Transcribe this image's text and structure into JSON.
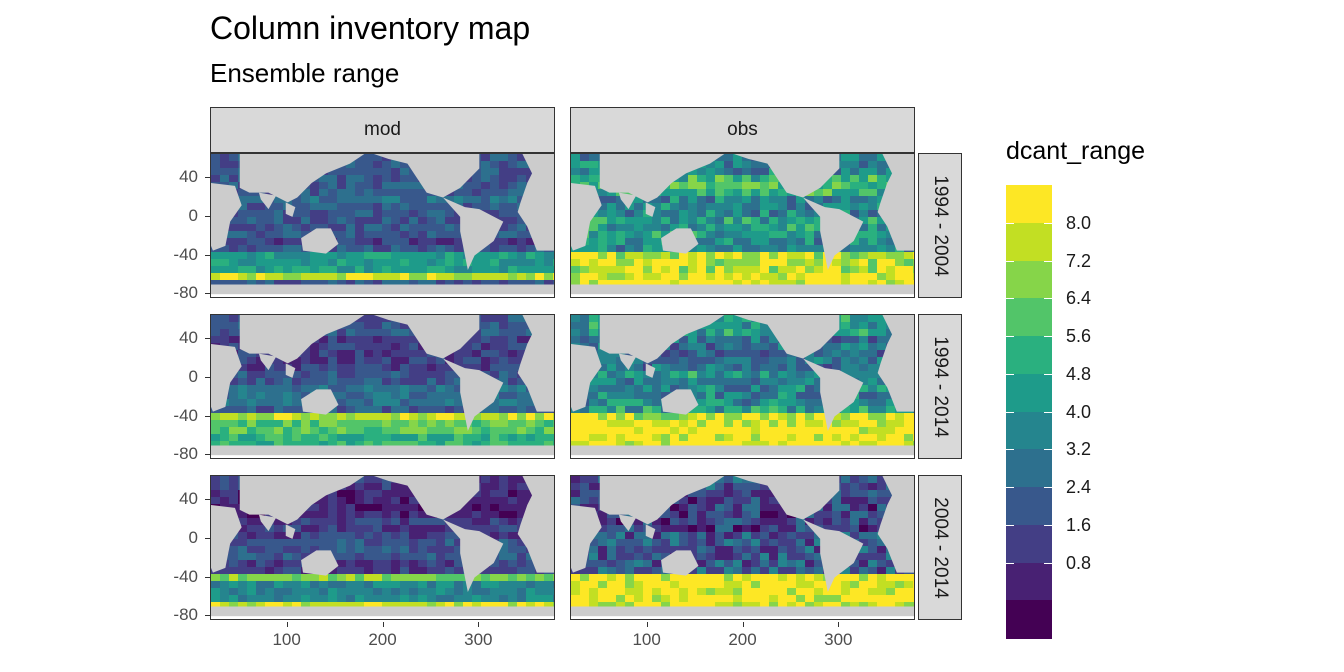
{
  "title": "Column inventory map",
  "subtitle": "Ensemble range",
  "facets": {
    "columns": [
      "mod",
      "obs"
    ],
    "rows": [
      "1994 - 2004",
      "1994 - 2014",
      "2004 - 2014"
    ]
  },
  "axes": {
    "y_ticks": [
      "40",
      "0",
      "-40",
      "-80"
    ],
    "x_ticks": [
      "100",
      "200",
      "300"
    ]
  },
  "legend": {
    "title": "dcant_range",
    "labels": [
      "8.0",
      "7.2",
      "6.4",
      "5.6",
      "4.8",
      "4.0",
      "3.2",
      "2.4",
      "1.6",
      "0.8"
    ],
    "colors": [
      "#fde725",
      "#c2df23",
      "#86d549",
      "#52c569",
      "#2ab07f",
      "#1e9b8a",
      "#25858e",
      "#2d708e",
      "#38588c",
      "#433e85",
      "#482173",
      "#440154"
    ]
  },
  "chart_data": {
    "type": "heatmap",
    "title": "Column inventory map",
    "subtitle": "Ensemble range",
    "variable": "dcant_range",
    "x": {
      "ticks": [
        100,
        200,
        300
      ],
      "range": [
        20,
        380
      ]
    },
    "y": {
      "ticks": [
        40,
        0,
        -40,
        -80
      ],
      "range": [
        -85,
        65
      ]
    },
    "color_breaks": [
      0.8,
      1.6,
      2.4,
      3.2,
      4.0,
      4.8,
      5.6,
      6.4,
      7.2,
      8.0
    ],
    "panels": [
      {
        "column": "mod",
        "row": "1994 - 2004"
      },
      {
        "column": "obs",
        "row": "1994 - 2004"
      },
      {
        "column": "mod",
        "row": "1994 - 2014"
      },
      {
        "column": "obs",
        "row": "1994 - 2014"
      },
      {
        "column": "mod",
        "row": "2004 - 2014"
      },
      {
        "column": "obs",
        "row": "2004 - 2014"
      }
    ]
  }
}
